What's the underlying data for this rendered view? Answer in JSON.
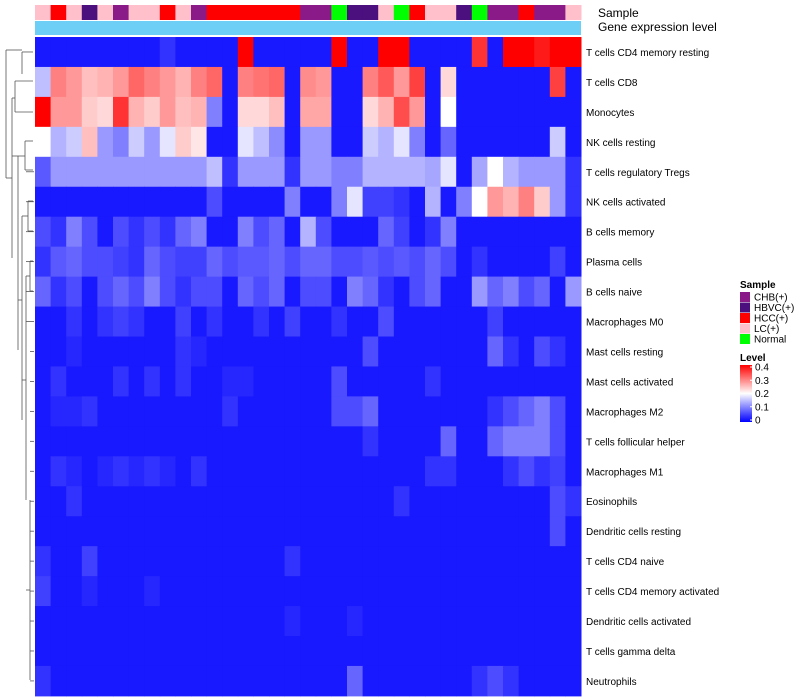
{
  "chart_data": {
    "type": "heatmap",
    "annotation_labels": {
      "sample": "Sample",
      "expression": "Gene expression level"
    },
    "columns": 35,
    "sample_groups": [
      "LC(+)",
      "HCC(+)",
      "LC(+)",
      "HBVC(+)",
      "LC(+)",
      "CHB(+)",
      "LC(+)",
      "LC(+)",
      "HCC(+)",
      "LC(+)",
      "CHB(+)",
      "HCC(+)",
      "HCC(+)",
      "HCC(+)",
      "HCC(+)",
      "HCC(+)",
      "HCC(+)",
      "CHB(+)",
      "CHB(+)",
      "Normal",
      "HBVC(+)",
      "HBVC(+)",
      "LC(+)",
      "Normal",
      "HCC(+)",
      "LC(+)",
      "LC(+)",
      "HBVC(+)",
      "Normal",
      "CHB(+)",
      "CHB(+)",
      "HCC(+)",
      "CHB(+)",
      "CHB(+)",
      "LC(+)"
    ],
    "sample_colors": {
      "CHB(+)": "#8B1A89",
      "HBVC(+)": "#4B0F7E",
      "HCC(+)": "#FF0000",
      "LC(+)": "#FFC0CB",
      "Normal": "#00FF00"
    },
    "expression_bar_color": "#6ECFF6",
    "rows": [
      "T cells CD4 memory resting",
      "T cells CD8",
      "Monocytes",
      "NK cells resting",
      "T cells regulatory  Tregs",
      "NK cells activated",
      "B cells memory",
      "Plasma cells",
      "B cells naive",
      "Macrophages M0",
      "Mast cells resting",
      "Mast cells activated",
      "Macrophages M2",
      "T cells follicular helper",
      "Macrophages M1",
      "Eosinophils",
      "Dendritic cells resting",
      "T cells CD4 naive",
      "T cells CD4 memory activated",
      "Dendritic cells activated",
      "T cells gamma delta",
      "Neutrophils"
    ],
    "values": [
      [
        0.02,
        0.02,
        0.02,
        0.02,
        0.02,
        0.02,
        0.02,
        0.02,
        0.04,
        0.02,
        0.02,
        0.02,
        0.02,
        0.4,
        0.02,
        0.02,
        0.02,
        0.02,
        0.02,
        0.4,
        0.02,
        0.02,
        0.4,
        0.4,
        0.02,
        0.02,
        0.02,
        0.02,
        0.36,
        0.02,
        0.4,
        0.4,
        0.38,
        0.4,
        0.4
      ],
      [
        0.15,
        0.3,
        0.28,
        0.25,
        0.26,
        0.28,
        0.32,
        0.3,
        0.28,
        0.26,
        0.3,
        0.32,
        0.02,
        0.3,
        0.31,
        0.32,
        0.02,
        0.29,
        0.28,
        0.02,
        0.02,
        0.3,
        0.33,
        0.28,
        0.35,
        0.02,
        0.23,
        0.02,
        0.02,
        0.02,
        0.02,
        0.02,
        0.02,
        0.35,
        0.02
      ],
      [
        0.4,
        0.28,
        0.28,
        0.24,
        0.23,
        0.36,
        0.26,
        0.24,
        0.28,
        0.25,
        0.26,
        0.1,
        0.02,
        0.23,
        0.23,
        0.25,
        0.02,
        0.27,
        0.27,
        0.02,
        0.02,
        0.23,
        0.26,
        0.34,
        0.28,
        0.02,
        0.2,
        0.02,
        0.02,
        0.02,
        0.02,
        0.02,
        0.02,
        0.02,
        0.02
      ],
      [
        0.2,
        0.14,
        0.16,
        0.25,
        0.12,
        0.1,
        0.16,
        0.12,
        0.18,
        0.24,
        0.22,
        0.02,
        0.02,
        0.18,
        0.15,
        0.11,
        0.02,
        0.12,
        0.12,
        0.02,
        0.02,
        0.16,
        0.14,
        0.18,
        0.1,
        0.02,
        0.08,
        0.02,
        0.02,
        0.02,
        0.02,
        0.02,
        0.02,
        0.16,
        0.02
      ],
      [
        0.07,
        0.12,
        0.12,
        0.12,
        0.12,
        0.12,
        0.12,
        0.12,
        0.12,
        0.12,
        0.12,
        0.15,
        0.04,
        0.12,
        0.12,
        0.12,
        0.04,
        0.12,
        0.12,
        0.1,
        0.1,
        0.14,
        0.14,
        0.14,
        0.14,
        0.13,
        0.18,
        0.02,
        0.13,
        0.2,
        0.14,
        0.12,
        0.12,
        0.12,
        0.04
      ],
      [
        0.02,
        0.02,
        0.02,
        0.02,
        0.02,
        0.02,
        0.02,
        0.02,
        0.02,
        0.02,
        0.02,
        0.06,
        0.02,
        0.02,
        0.02,
        0.02,
        0.1,
        0.02,
        0.02,
        0.1,
        0.18,
        0.05,
        0.05,
        0.04,
        0.02,
        0.14,
        0.02,
        0.1,
        0.2,
        0.28,
        0.26,
        0.3,
        0.24,
        0.12,
        0.04
      ],
      [
        0.06,
        0.04,
        0.1,
        0.06,
        0.02,
        0.06,
        0.04,
        0.06,
        0.04,
        0.08,
        0.1,
        0.02,
        0.02,
        0.1,
        0.06,
        0.08,
        0.02,
        0.14,
        0.06,
        0.02,
        0.02,
        0.02,
        0.08,
        0.05,
        0.02,
        0.04,
        0.1,
        0.02,
        0.02,
        0.02,
        0.02,
        0.02,
        0.02,
        0.02,
        0.02
      ],
      [
        0.04,
        0.07,
        0.08,
        0.06,
        0.06,
        0.05,
        0.04,
        0.08,
        0.06,
        0.05,
        0.05,
        0.08,
        0.06,
        0.07,
        0.07,
        0.08,
        0.06,
        0.08,
        0.08,
        0.06,
        0.06,
        0.07,
        0.06,
        0.07,
        0.06,
        0.08,
        0.06,
        0.02,
        0.04,
        0.02,
        0.02,
        0.02,
        0.02,
        0.05,
        0.02
      ],
      [
        0.08,
        0.04,
        0.06,
        0.02,
        0.06,
        0.08,
        0.06,
        0.1,
        0.06,
        0.04,
        0.06,
        0.06,
        0.02,
        0.08,
        0.06,
        0.08,
        0.02,
        0.06,
        0.06,
        0.02,
        0.1,
        0.08,
        0.04,
        0.02,
        0.06,
        0.08,
        0.02,
        0.02,
        0.12,
        0.08,
        0.1,
        0.06,
        0.08,
        0.02,
        0.12
      ],
      [
        0.02,
        0.02,
        0.04,
        0.02,
        0.04,
        0.05,
        0.04,
        0.02,
        0.02,
        0.05,
        0.02,
        0.04,
        0.02,
        0.02,
        0.04,
        0.02,
        0.05,
        0.02,
        0.02,
        0.04,
        0.02,
        0.02,
        0.06,
        0.02,
        0.02,
        0.02,
        0.02,
        0.02,
        0.02,
        0.05,
        0.02,
        0.02,
        0.02,
        0.02,
        0.02
      ],
      [
        0.02,
        0.02,
        0.03,
        0.02,
        0.02,
        0.02,
        0.02,
        0.02,
        0.02,
        0.04,
        0.03,
        0.02,
        0.02,
        0.02,
        0.02,
        0.02,
        0.02,
        0.02,
        0.02,
        0.02,
        0.02,
        0.06,
        0.02,
        0.02,
        0.02,
        0.02,
        0.02,
        0.02,
        0.02,
        0.08,
        0.04,
        0.02,
        0.06,
        0.04,
        0.02
      ],
      [
        0.02,
        0.04,
        0.02,
        0.02,
        0.02,
        0.04,
        0.02,
        0.04,
        0.02,
        0.04,
        0.02,
        0.02,
        0.03,
        0.03,
        0.02,
        0.02,
        0.02,
        0.02,
        0.02,
        0.06,
        0.02,
        0.02,
        0.02,
        0.02,
        0.02,
        0.04,
        0.02,
        0.02,
        0.02,
        0.02,
        0.02,
        0.02,
        0.02,
        0.02,
        0.02
      ],
      [
        0.02,
        0.03,
        0.03,
        0.04,
        0.02,
        0.02,
        0.02,
        0.02,
        0.02,
        0.02,
        0.02,
        0.02,
        0.04,
        0.02,
        0.02,
        0.02,
        0.02,
        0.02,
        0.02,
        0.06,
        0.06,
        0.08,
        0.02,
        0.02,
        0.02,
        0.02,
        0.02,
        0.02,
        0.02,
        0.04,
        0.06,
        0.08,
        0.1,
        0.06,
        0.02
      ],
      [
        0.02,
        0.02,
        0.02,
        0.02,
        0.02,
        0.02,
        0.02,
        0.02,
        0.02,
        0.02,
        0.02,
        0.02,
        0.02,
        0.02,
        0.02,
        0.02,
        0.02,
        0.02,
        0.02,
        0.02,
        0.02,
        0.04,
        0.02,
        0.02,
        0.02,
        0.02,
        0.08,
        0.02,
        0.02,
        0.08,
        0.1,
        0.1,
        0.1,
        0.06,
        0.02
      ],
      [
        0.02,
        0.04,
        0.03,
        0.02,
        0.03,
        0.04,
        0.03,
        0.04,
        0.03,
        0.02,
        0.04,
        0.02,
        0.02,
        0.02,
        0.02,
        0.02,
        0.02,
        0.02,
        0.02,
        0.02,
        0.02,
        0.02,
        0.02,
        0.02,
        0.02,
        0.04,
        0.04,
        0.02,
        0.02,
        0.02,
        0.04,
        0.06,
        0.04,
        0.05,
        0.02
      ],
      [
        0.02,
        0.02,
        0.04,
        0.02,
        0.02,
        0.02,
        0.02,
        0.02,
        0.02,
        0.02,
        0.02,
        0.02,
        0.02,
        0.02,
        0.02,
        0.02,
        0.02,
        0.02,
        0.02,
        0.02,
        0.02,
        0.02,
        0.02,
        0.04,
        0.02,
        0.02,
        0.02,
        0.02,
        0.02,
        0.02,
        0.02,
        0.02,
        0.02,
        0.06,
        0.04
      ],
      [
        0.02,
        0.02,
        0.02,
        0.02,
        0.02,
        0.02,
        0.02,
        0.02,
        0.02,
        0.02,
        0.02,
        0.02,
        0.02,
        0.02,
        0.02,
        0.02,
        0.02,
        0.02,
        0.02,
        0.02,
        0.02,
        0.02,
        0.02,
        0.02,
        0.02,
        0.02,
        0.02,
        0.02,
        0.02,
        0.02,
        0.02,
        0.02,
        0.02,
        0.06,
        0.02
      ],
      [
        0.04,
        0.02,
        0.02,
        0.05,
        0.02,
        0.02,
        0.02,
        0.02,
        0.02,
        0.02,
        0.02,
        0.02,
        0.02,
        0.02,
        0.02,
        0.02,
        0.04,
        0.02,
        0.02,
        0.02,
        0.02,
        0.02,
        0.02,
        0.02,
        0.02,
        0.02,
        0.02,
        0.02,
        0.02,
        0.02,
        0.02,
        0.02,
        0.02,
        0.02,
        0.02
      ],
      [
        0.05,
        0.02,
        0.02,
        0.03,
        0.02,
        0.02,
        0.02,
        0.03,
        0.02,
        0.02,
        0.02,
        0.02,
        0.02,
        0.02,
        0.02,
        0.02,
        0.02,
        0.02,
        0.02,
        0.02,
        0.02,
        0.02,
        0.02,
        0.02,
        0.02,
        0.02,
        0.02,
        0.02,
        0.02,
        0.02,
        0.02,
        0.02,
        0.02,
        0.02,
        0.02
      ],
      [
        0.02,
        0.02,
        0.02,
        0.02,
        0.02,
        0.02,
        0.02,
        0.02,
        0.02,
        0.02,
        0.02,
        0.02,
        0.02,
        0.02,
        0.02,
        0.02,
        0.03,
        0.02,
        0.02,
        0.02,
        0.03,
        0.02,
        0.02,
        0.02,
        0.02,
        0.02,
        0.02,
        0.02,
        0.02,
        0.02,
        0.02,
        0.02,
        0.02,
        0.02,
        0.02
      ],
      [
        0.02,
        0.02,
        0.02,
        0.02,
        0.02,
        0.02,
        0.02,
        0.02,
        0.02,
        0.02,
        0.02,
        0.02,
        0.02,
        0.02,
        0.02,
        0.02,
        0.02,
        0.02,
        0.02,
        0.02,
        0.02,
        0.02,
        0.02,
        0.02,
        0.02,
        0.02,
        0.02,
        0.02,
        0.02,
        0.02,
        0.02,
        0.02,
        0.02,
        0.02,
        0.02
      ],
      [
        0.04,
        0.02,
        0.02,
        0.02,
        0.02,
        0.02,
        0.02,
        0.02,
        0.02,
        0.02,
        0.02,
        0.02,
        0.02,
        0.02,
        0.02,
        0.02,
        0.02,
        0.02,
        0.02,
        0.02,
        0.08,
        0.02,
        0.02,
        0.02,
        0.02,
        0.02,
        0.02,
        0.02,
        0.04,
        0.06,
        0.04,
        0.02,
        0.02,
        0.02,
        0.02
      ]
    ],
    "legend_sample": {
      "title": "Sample",
      "entries": [
        "CHB(+)",
        "HBVC(+)",
        "HCC(+)",
        "LC(+)",
        "Normal"
      ]
    },
    "legend_level": {
      "title": "Level",
      "ticks": [
        0.4,
        0.3,
        0.2,
        0.1,
        0
      ],
      "tick_labels": [
        "0.4",
        "0.3",
        "0.2",
        "0.1",
        "0"
      ],
      "range": [
        0,
        0.4
      ],
      "colors": [
        "#0000FF",
        "#FFFFFF",
        "#FF0000"
      ]
    }
  }
}
